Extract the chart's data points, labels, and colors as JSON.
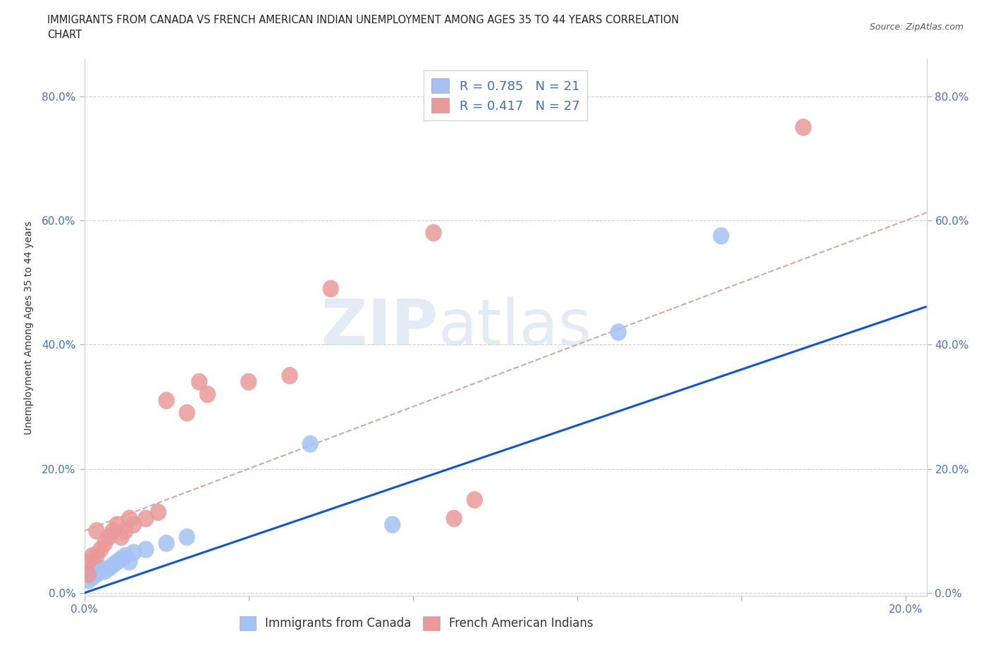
{
  "title_line1": "IMMIGRANTS FROM CANADA VS FRENCH AMERICAN INDIAN UNEMPLOYMENT AMONG AGES 35 TO 44 YEARS CORRELATION",
  "title_line2": "CHART",
  "source": "Source: ZipAtlas.com",
  "ylabel": "Unemployment Among Ages 35 to 44 years",
  "xlim": [
    0.0,
    0.205
  ],
  "ylim": [
    -0.005,
    0.86
  ],
  "blue_color": "#a4c2f4",
  "pink_color": "#ea9999",
  "blue_line_color": "#1155cc",
  "pink_line_color": "#cc0000",
  "dashed_line_color": "#ccaaaa",
  "R_blue": 0.785,
  "N_blue": 21,
  "R_pink": 0.417,
  "N_pink": 27,
  "legend_label_blue": "Immigrants from Canada",
  "legend_label_pink": "French American Indians",
  "blue_x": [
    0.001,
    0.001,
    0.002,
    0.002,
    0.003,
    0.004,
    0.005,
    0.006,
    0.007,
    0.008,
    0.009,
    0.01,
    0.011,
    0.012,
    0.015,
    0.02,
    0.025,
    0.055,
    0.075,
    0.13,
    0.155
  ],
  "blue_y": [
    0.02,
    0.03,
    0.025,
    0.04,
    0.03,
    0.04,
    0.035,
    0.04,
    0.045,
    0.05,
    0.055,
    0.06,
    0.05,
    0.065,
    0.07,
    0.08,
    0.09,
    0.24,
    0.11,
    0.42,
    0.575
  ],
  "pink_x": [
    0.001,
    0.001,
    0.002,
    0.003,
    0.003,
    0.004,
    0.005,
    0.006,
    0.007,
    0.008,
    0.009,
    0.01,
    0.011,
    0.012,
    0.015,
    0.018,
    0.02,
    0.025,
    0.028,
    0.03,
    0.04,
    0.05,
    0.06,
    0.085,
    0.09,
    0.095,
    0.175
  ],
  "pink_y": [
    0.03,
    0.05,
    0.06,
    0.06,
    0.1,
    0.07,
    0.08,
    0.09,
    0.1,
    0.11,
    0.09,
    0.1,
    0.12,
    0.11,
    0.12,
    0.13,
    0.31,
    0.29,
    0.34,
    0.32,
    0.34,
    0.35,
    0.49,
    0.58,
    0.12,
    0.15,
    0.75
  ],
  "watermark_text": "ZIPatlas"
}
